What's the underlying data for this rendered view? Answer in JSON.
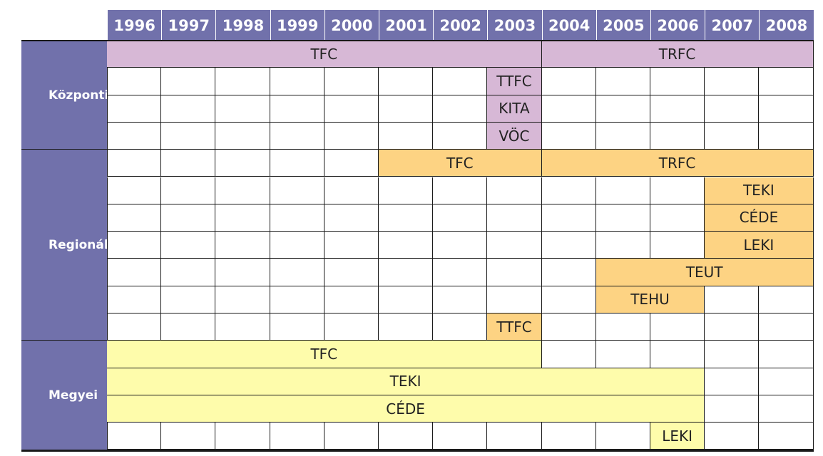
{
  "chart_data": {
    "type": "table",
    "years": [
      "1996",
      "1997",
      "1998",
      "1999",
      "2000",
      "2001",
      "2002",
      "2003",
      "2004",
      "2005",
      "2006",
      "2007",
      "2008"
    ],
    "colors": {
      "header": "#7171ab",
      "kozponti": "#d7b8d6",
      "regionalis": "#fdd383",
      "megyei": "#fefcab"
    },
    "groups": [
      {
        "name": "Központi",
        "color_key": "kozponti",
        "rows": [
          [
            {
              "label": "TFC",
              "start": "1996",
              "end": "2003"
            },
            {
              "label": "TRFC",
              "start": "2004",
              "end": "2008"
            }
          ],
          [
            {
              "label": "TTFC",
              "start": "2003",
              "end": "2003"
            }
          ],
          [
            {
              "label": "KITA",
              "start": "2003",
              "end": "2003"
            }
          ],
          [
            {
              "label": "VÖC",
              "start": "2003",
              "end": "2003"
            }
          ]
        ]
      },
      {
        "name": "Regionális",
        "color_key": "regionalis",
        "rows": [
          [
            {
              "label": "TFC",
              "start": "2001",
              "end": "2003"
            },
            {
              "label": "TRFC",
              "start": "2004",
              "end": "2008"
            }
          ],
          [
            {
              "label": "TEKI",
              "start": "2007",
              "end": "2008"
            }
          ],
          [
            {
              "label": "CÉDE",
              "start": "2007",
              "end": "2008"
            }
          ],
          [
            {
              "label": "LEKI",
              "start": "2007",
              "end": "2008"
            }
          ],
          [
            {
              "label": "TEUT",
              "start": "2005",
              "end": "2008"
            }
          ],
          [
            {
              "label": "TEHU",
              "start": "2005",
              "end": "2006"
            }
          ],
          [
            {
              "label": "TTFC",
              "start": "2003",
              "end": "2003"
            }
          ]
        ]
      },
      {
        "name": "Megyei",
        "color_key": "megyei",
        "rows": [
          [
            {
              "label": "TFC",
              "start": "1996",
              "end": "2003"
            }
          ],
          [
            {
              "label": "TEKI",
              "start": "1996",
              "end": "2006"
            }
          ],
          [
            {
              "label": "CÉDE",
              "start": "1996",
              "end": "2006"
            }
          ],
          [
            {
              "label": "LEKI",
              "start": "2006",
              "end": "2006"
            }
          ]
        ]
      }
    ]
  }
}
